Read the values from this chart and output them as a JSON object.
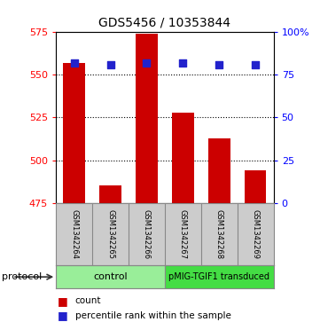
{
  "title": "GDS5456 / 10353844",
  "samples": [
    "GSM1342264",
    "GSM1342265",
    "GSM1342266",
    "GSM1342267",
    "GSM1342268",
    "GSM1342269"
  ],
  "counts": [
    557,
    485,
    574,
    528,
    513,
    494
  ],
  "percentile_ranks": [
    82,
    81,
    82,
    82,
    81,
    81
  ],
  "groups": [
    "control",
    "control",
    "control",
    "pMIG-TGIF1 transduced",
    "pMIG-TGIF1 transduced",
    "pMIG-TGIF1 transduced"
  ],
  "ylim_left": [
    475,
    575
  ],
  "ylim_right": [
    0,
    100
  ],
  "yticks_left": [
    475,
    500,
    525,
    550,
    575
  ],
  "yticks_right": [
    0,
    25,
    50,
    75,
    100
  ],
  "bar_color": "#cc0000",
  "dot_color": "#2222cc",
  "control_color": "#99ee99",
  "transduced_color": "#44dd44",
  "label_bg": "#cccccc",
  "background_color": "#ffffff",
  "bar_width": 0.6,
  "dot_size": 40,
  "grid_yticks": [
    500,
    525,
    550
  ],
  "num_control": 3,
  "num_transduced": 3
}
